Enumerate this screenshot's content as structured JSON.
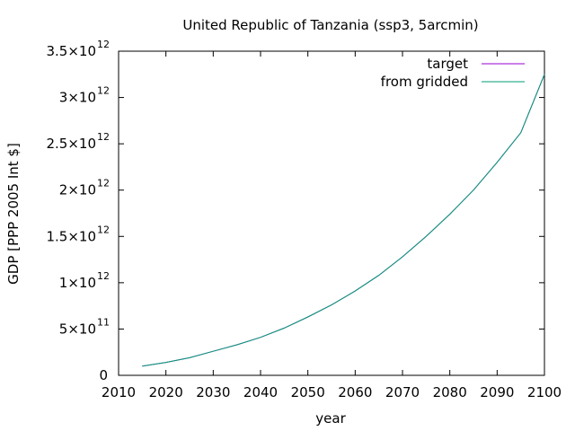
{
  "chart_data": {
    "type": "line",
    "title": "United Republic of Tanzania (ssp3, 5arcmin)",
    "xlabel": "year",
    "ylabel": "GDP [PPP 2005 Int $]",
    "xlim": [
      2010,
      2100
    ],
    "ylim": [
      0,
      3500000000000.0
    ],
    "grid": false,
    "legend_position": "top-right",
    "x_ticks": [
      2010,
      2020,
      2030,
      2040,
      2050,
      2060,
      2070,
      2080,
      2090,
      2100
    ],
    "y_ticks": [
      {
        "value": 0,
        "mantissa": "0",
        "exponent": ""
      },
      {
        "value": 500000000000.0,
        "mantissa": "5×10",
        "exponent": "11"
      },
      {
        "value": 1000000000000.0,
        "mantissa": "1×10",
        "exponent": "12"
      },
      {
        "value": 1500000000000.0,
        "mantissa": "1.5×10",
        "exponent": "12"
      },
      {
        "value": 2000000000000.0,
        "mantissa": "2×10",
        "exponent": "12"
      },
      {
        "value": 2500000000000.0,
        "mantissa": "2.5×10",
        "exponent": "12"
      },
      {
        "value": 3000000000000.0,
        "mantissa": "3×10",
        "exponent": "12"
      },
      {
        "value": 3500000000000.0,
        "mantissa": "3.5×10",
        "exponent": "12"
      }
    ],
    "x": [
      2015,
      2020,
      2025,
      2030,
      2035,
      2040,
      2045,
      2050,
      2055,
      2060,
      2065,
      2070,
      2075,
      2080,
      2085,
      2090,
      2095,
      2100
    ],
    "series": [
      {
        "name": "target",
        "color": "#9400d3",
        "values": [
          100000000000.0,
          140000000000.0,
          190000000000.0,
          260000000000.0,
          330000000000.0,
          410000000000.0,
          510000000000.0,
          630000000000.0,
          760000000000.0,
          910000000000.0,
          1080000000000.0,
          1280000000000.0,
          1500000000000.0,
          1740000000000.0,
          2000000000000.0,
          2300000000000.0,
          2620000000000.0,
          3250000000000.0
        ]
      },
      {
        "name": "from gridded",
        "color": "#009e73",
        "values": [
          100000000000.0,
          140000000000.0,
          190000000000.0,
          260000000000.0,
          330000000000.0,
          410000000000.0,
          510000000000.0,
          630000000000.0,
          760000000000.0,
          910000000000.0,
          1080000000000.0,
          1280000000000.0,
          1500000000000.0,
          1740000000000.0,
          2000000000000.0,
          2300000000000.0,
          2620000000000.0,
          3250000000000.0
        ]
      }
    ]
  }
}
